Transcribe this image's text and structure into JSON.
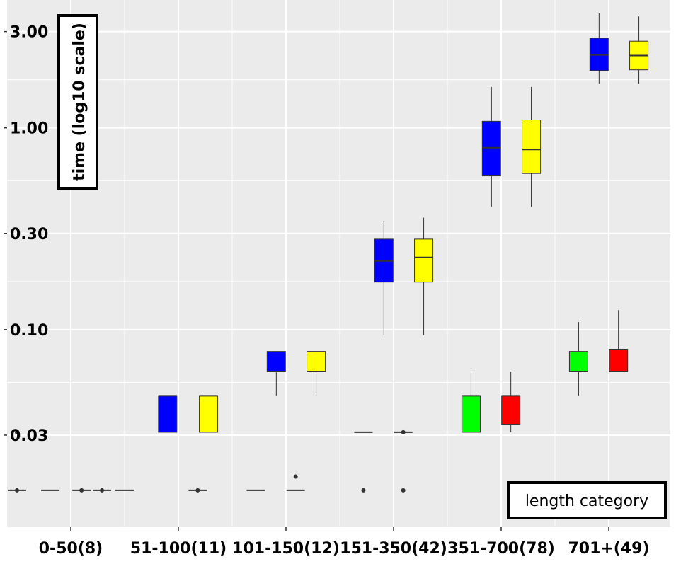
{
  "chart_data": {
    "type": "boxplot",
    "title": "",
    "ylabel": "time (log10 scale)",
    "xlabel": "length category",
    "y_scale": "log10",
    "ylim": [
      0.0105,
      4.3
    ],
    "y_ticks": [
      {
        "value": 0.03,
        "label": "0.03"
      },
      {
        "value": 0.1,
        "label": "0.10"
      },
      {
        "value": 0.3,
        "label": "0.30"
      },
      {
        "value": 1.0,
        "label": "1.00"
      },
      {
        "value": 3.0,
        "label": "3.00"
      }
    ],
    "categories": [
      "0-50(8)",
      "51-100(11)",
      "101-150(12)",
      "151-350(42)",
      "351-700(78)",
      "701+(49)"
    ],
    "grid": true,
    "colors": {
      "background": "#EBEBEB",
      "grid": "#FFFFFF",
      "blue": "#0000FF",
      "yellow": "#FFFF00",
      "green": "#00FF00",
      "red": "#FF0000",
      "outline": "#333333"
    },
    "boxes": [
      {
        "category": "0-50(8)",
        "offset": -0.5,
        "color": "#0000FF",
        "whisker_low": 0.016,
        "q1": 0.016,
        "median": 0.016,
        "q3": 0.016,
        "whisker_high": 0.016,
        "outliers": [
          0.016,
          0.031
        ]
      },
      {
        "category": "0-50(8)",
        "offset": -0.19,
        "color": "#FFFF00",
        "whisker_low": 0.016,
        "q1": 0.016,
        "median": 0.016,
        "q3": 0.016,
        "whisker_high": 0.016,
        "outliers": []
      },
      {
        "category": "0-50(8)",
        "offset": 0.1,
        "color": "#00FF00",
        "whisker_low": 0.016,
        "q1": 0.016,
        "median": 0.016,
        "q3": 0.016,
        "whisker_high": 0.016,
        "outliers": [
          0.016
        ]
      },
      {
        "category": "0-50(8)",
        "offset": 0.29,
        "color": "#FF0000",
        "whisker_low": 0.016,
        "q1": 0.016,
        "median": 0.016,
        "q3": 0.016,
        "whisker_high": 0.016,
        "outliers": [
          0.016
        ]
      },
      {
        "category": "51-100(11)",
        "offset": -0.5,
        "color": "#00FF00",
        "whisker_low": 0.016,
        "q1": 0.016,
        "median": 0.016,
        "q3": 0.016,
        "whisker_high": 0.016,
        "outliers": []
      },
      {
        "category": "51-100(11)",
        "offset": -0.1,
        "color": "#0000FF",
        "whisker_low": 0.031,
        "q1": 0.031,
        "median": 0.047,
        "q3": 0.047,
        "whisker_high": 0.047,
        "outliers": []
      },
      {
        "category": "51-100(11)",
        "offset": 0.18,
        "color": "#FF0000",
        "whisker_low": 0.016,
        "q1": 0.016,
        "median": 0.016,
        "q3": 0.016,
        "whisker_high": 0.016,
        "outliers": [
          0.016
        ]
      },
      {
        "category": "51-100(11)",
        "offset": 0.28,
        "color": "#FFFF00",
        "whisker_low": 0.031,
        "q1": 0.031,
        "median": 0.047,
        "q3": 0.047,
        "whisker_high": 0.047,
        "outliers": []
      },
      {
        "category": "101-150(12)",
        "offset": -0.28,
        "color": "#00FF00",
        "whisker_low": 0.016,
        "q1": 0.016,
        "median": 0.016,
        "q3": 0.016,
        "whisker_high": 0.016,
        "outliers": []
      },
      {
        "category": "101-150(12)",
        "offset": -0.09,
        "color": "#0000FF",
        "whisker_low": 0.047,
        "q1": 0.062,
        "median": 0.062,
        "q3": 0.078,
        "whisker_high": 0.078,
        "outliers": []
      },
      {
        "category": "101-150(12)",
        "offset": 0.09,
        "color": "#FF0000",
        "whisker_low": 0.016,
        "q1": 0.016,
        "median": 0.016,
        "q3": 0.016,
        "whisker_high": 0.016,
        "outliers": [
          0.0187
        ]
      },
      {
        "category": "101-150(12)",
        "offset": 0.28,
        "color": "#FFFF00",
        "whisker_low": 0.047,
        "q1": 0.062,
        "median": 0.062,
        "q3": 0.078,
        "whisker_high": 0.078,
        "outliers": []
      },
      {
        "category": "151-350(42)",
        "offset": -0.28,
        "color": "#00FF00",
        "whisker_low": 0.031,
        "q1": 0.031,
        "median": 0.031,
        "q3": 0.031,
        "whisker_high": 0.031,
        "outliers": [
          0.016
        ]
      },
      {
        "category": "151-350(42)",
        "offset": -0.09,
        "color": "#0000FF",
        "whisker_low": 0.094,
        "q1": 0.172,
        "median": 0.219,
        "q3": 0.281,
        "whisker_high": 0.344,
        "outliers": []
      },
      {
        "category": "151-350(42)",
        "offset": 0.09,
        "color": "#FF0000",
        "whisker_low": 0.031,
        "q1": 0.031,
        "median": 0.031,
        "q3": 0.031,
        "whisker_high": 0.031,
        "outliers": [
          0.016,
          0.031
        ]
      },
      {
        "category": "151-350(42)",
        "offset": 0.28,
        "color": "#FFFF00",
        "whisker_low": 0.094,
        "q1": 0.172,
        "median": 0.228,
        "q3": 0.281,
        "whisker_high": 0.359,
        "outliers": []
      },
      {
        "category": "351-700(78)",
        "offset": -0.28,
        "color": "#00FF00",
        "whisker_low": 0.031,
        "q1": 0.031,
        "median": 0.047,
        "q3": 0.047,
        "whisker_high": 0.062,
        "outliers": []
      },
      {
        "category": "351-700(78)",
        "offset": -0.09,
        "color": "#0000FF",
        "whisker_low": 0.406,
        "q1": 0.578,
        "median": 0.797,
        "q3": 1.078,
        "whisker_high": 1.594,
        "outliers": []
      },
      {
        "category": "351-700(78)",
        "offset": 0.09,
        "color": "#FF0000",
        "whisker_low": 0.031,
        "q1": 0.034,
        "median": 0.047,
        "q3": 0.047,
        "whisker_high": 0.062,
        "outliers": []
      },
      {
        "category": "351-700(78)",
        "offset": 0.28,
        "color": "#FFFF00",
        "whisker_low": 0.406,
        "q1": 0.594,
        "median": 0.781,
        "q3": 1.094,
        "whisker_high": 1.594,
        "outliers": []
      },
      {
        "category": "701+(49)",
        "offset": -0.28,
        "color": "#00FF00",
        "whisker_low": 0.047,
        "q1": 0.062,
        "median": 0.062,
        "q3": 0.078,
        "whisker_high": 0.109,
        "outliers": []
      },
      {
        "category": "701+(49)",
        "offset": -0.09,
        "color": "#0000FF",
        "whisker_low": 1.656,
        "q1": 1.922,
        "median": 2.297,
        "q3": 2.781,
        "whisker_high": 3.688,
        "outliers": []
      },
      {
        "category": "701+(49)",
        "offset": 0.09,
        "color": "#FF0000",
        "whisker_low": 0.062,
        "q1": 0.062,
        "median": 0.062,
        "q3": 0.08,
        "whisker_high": 0.125,
        "outliers": []
      },
      {
        "category": "701+(49)",
        "offset": 0.28,
        "color": "#FFFF00",
        "whisker_low": 1.656,
        "q1": 1.938,
        "median": 2.281,
        "q3": 2.688,
        "whisker_high": 3.563,
        "outliers": []
      }
    ]
  }
}
